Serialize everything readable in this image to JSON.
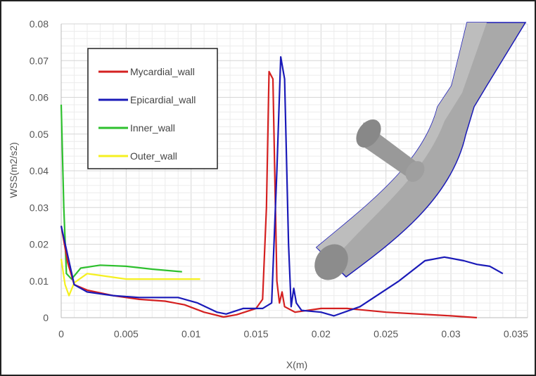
{
  "chart_data": {
    "type": "line",
    "title": "",
    "xlabel": "X(m)",
    "ylabel": "WSS(m2/s2)",
    "xlim": [
      0,
      0.0359
    ],
    "ylim": [
      0,
      0.08
    ],
    "xticks": [
      "0",
      "0.005",
      "0.01",
      "0.015",
      "0.02",
      "0.025",
      "0.03",
      "0.035"
    ],
    "yticks": [
      "0",
      "0.01",
      "0.02",
      "0.03",
      "0.04",
      "0.05",
      "0.06",
      "0.07",
      "0.08"
    ],
    "grid": true,
    "legend_position": "top-left",
    "series": [
      {
        "name": "Mycardial_wall",
        "color": "#d42020",
        "points": [
          [
            0,
            0.025
          ],
          [
            0.0005,
            0.015
          ],
          [
            0.001,
            0.009
          ],
          [
            0.002,
            0.0075
          ],
          [
            0.004,
            0.006
          ],
          [
            0.006,
            0.005
          ],
          [
            0.008,
            0.0045
          ],
          [
            0.0095,
            0.0035
          ],
          [
            0.011,
            0.0015
          ],
          [
            0.0125,
            0.0002
          ],
          [
            0.0135,
            0.0008
          ],
          [
            0.015,
            0.0025
          ],
          [
            0.0155,
            0.005
          ],
          [
            0.0158,
            0.03
          ],
          [
            0.016,
            0.067
          ],
          [
            0.0163,
            0.065
          ],
          [
            0.0166,
            0.01
          ],
          [
            0.0168,
            0.004
          ],
          [
            0.017,
            0.007
          ],
          [
            0.0172,
            0.003
          ],
          [
            0.018,
            0.0015
          ],
          [
            0.02,
            0.0025
          ],
          [
            0.022,
            0.0025
          ],
          [
            0.025,
            0.0015
          ],
          [
            0.03,
            0.0005
          ],
          [
            0.032,
            0
          ]
        ]
      },
      {
        "name": "Epicardial_wall",
        "color": "#1a1ab8",
        "points": [
          [
            0,
            0.025
          ],
          [
            0.0005,
            0.017
          ],
          [
            0.001,
            0.009
          ],
          [
            0.002,
            0.007
          ],
          [
            0.004,
            0.006
          ],
          [
            0.006,
            0.0055
          ],
          [
            0.009,
            0.0055
          ],
          [
            0.0105,
            0.004
          ],
          [
            0.012,
            0.0015
          ],
          [
            0.0127,
            0.001
          ],
          [
            0.014,
            0.0025
          ],
          [
            0.0155,
            0.0025
          ],
          [
            0.0162,
            0.004
          ],
          [
            0.0166,
            0.04
          ],
          [
            0.0169,
            0.071
          ],
          [
            0.0172,
            0.065
          ],
          [
            0.0175,
            0.02
          ],
          [
            0.0177,
            0.003
          ],
          [
            0.0179,
            0.008
          ],
          [
            0.0181,
            0.004
          ],
          [
            0.0185,
            0.002
          ],
          [
            0.02,
            0.0015
          ],
          [
            0.021,
            0.0005
          ],
          [
            0.023,
            0.003
          ],
          [
            0.026,
            0.01
          ],
          [
            0.028,
            0.0155
          ],
          [
            0.0295,
            0.0165
          ],
          [
            0.031,
            0.0155
          ],
          [
            0.032,
            0.0145
          ],
          [
            0.033,
            0.014
          ],
          [
            0.034,
            0.012
          ]
        ]
      },
      {
        "name": "Inner_wall",
        "color": "#2ec02e",
        "points": [
          [
            0,
            0.058
          ],
          [
            0.0002,
            0.03
          ],
          [
            0.0004,
            0.012
          ],
          [
            0.0008,
            0.0105
          ],
          [
            0.0015,
            0.0135
          ],
          [
            0.003,
            0.0143
          ],
          [
            0.005,
            0.014
          ],
          [
            0.007,
            0.0132
          ],
          [
            0.0093,
            0.0125
          ]
        ]
      },
      {
        "name": "Outer_wall",
        "color": "#f5f020",
        "points": [
          [
            0,
            0.016
          ],
          [
            0.0003,
            0.009
          ],
          [
            0.0006,
            0.006
          ],
          [
            0.001,
            0.0095
          ],
          [
            0.002,
            0.012
          ],
          [
            0.003,
            0.0115
          ],
          [
            0.005,
            0.0105
          ],
          [
            0.008,
            0.0105
          ],
          [
            0.0107,
            0.0105
          ]
        ]
      }
    ],
    "inset_image": "vessel-3d-model"
  }
}
